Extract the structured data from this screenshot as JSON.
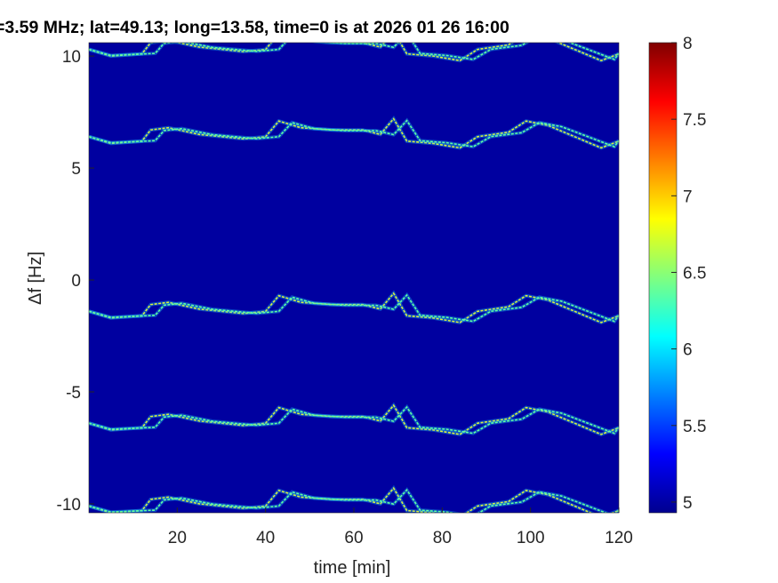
{
  "chart_data": {
    "type": "heatmap",
    "title": "=3.59 MHz;  lat=49.13; long=13.58, time=0 is at 2026 01 26 16:00",
    "xlabel": "time [min]",
    "ylabel": "Δf [Hz]",
    "xlim": [
      0,
      120
    ],
    "ylim": [
      -10.4,
      10.6
    ],
    "xticks": [
      20,
      40,
      60,
      80,
      100,
      120
    ],
    "xtick_labels": [
      "20",
      "40",
      "60",
      "80",
      "100",
      "120"
    ],
    "yticks": [
      10,
      5,
      0,
      -5,
      -10
    ],
    "ytick_labels": [
      "10",
      "5",
      "0",
      "-5",
      "-10"
    ],
    "colormap": "jet",
    "background_color": "#0000a0",
    "colorbar": {
      "range": [
        4.93,
        8
      ],
      "ticks": [
        5,
        5.5,
        6,
        6.5,
        7,
        7.5,
        8
      ],
      "tick_labels": [
        "5",
        "5.5",
        "6",
        "6.5",
        "7",
        "7.5",
        "8"
      ]
    },
    "trace_band_centers_hz": [
      10.3,
      6.4,
      -1.4,
      -6.4,
      -10.1
    ],
    "trace_shape": {
      "time_min": [
        0,
        5,
        12,
        14,
        18,
        25,
        35,
        40,
        43,
        48,
        55,
        62,
        66,
        69,
        72,
        78,
        84,
        88,
        95,
        99,
        104,
        110,
        116,
        120
      ],
      "offset_hz": [
        0,
        -0.3,
        -0.2,
        0.3,
        0.4,
        0.1,
        -0.1,
        0,
        0.7,
        0.4,
        0.3,
        0.3,
        0.1,
        0.8,
        -0.2,
        -0.3,
        -0.5,
        0,
        0.2,
        0.7,
        0.5,
        0,
        -0.5,
        -0.2
      ]
    },
    "second_trace_delay_min": 3
  }
}
